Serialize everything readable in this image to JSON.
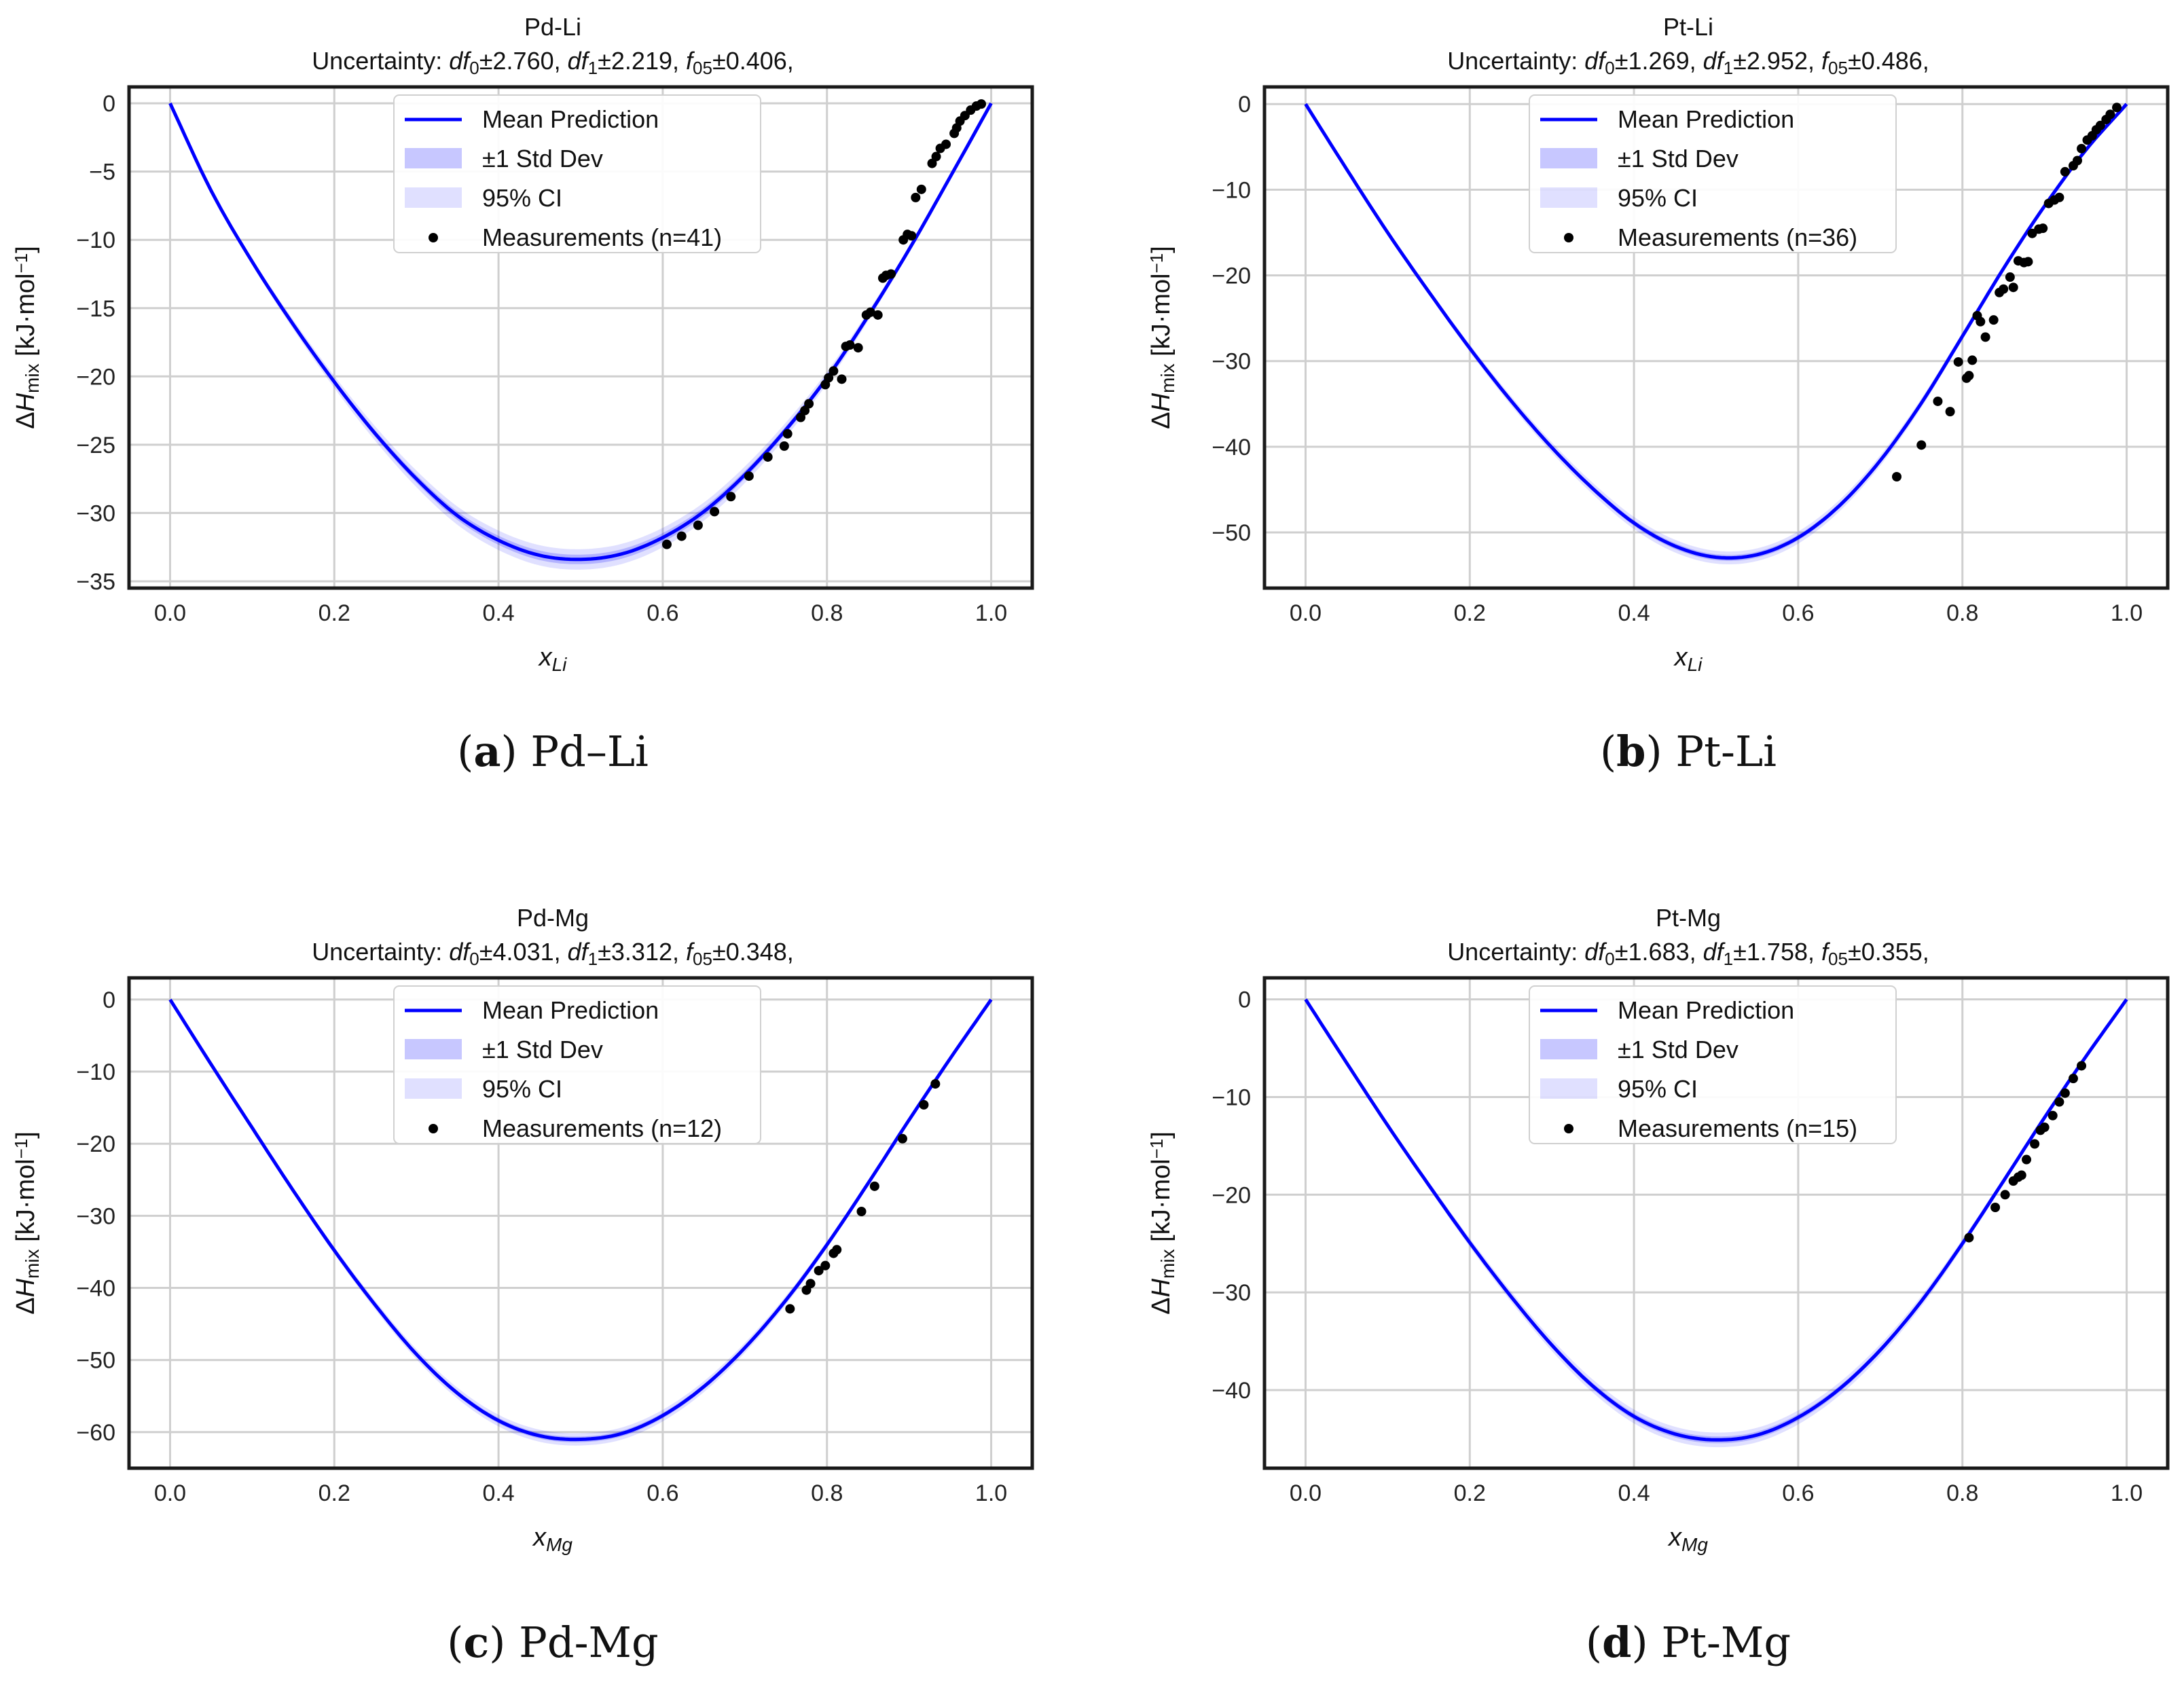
{
  "panels": [
    {
      "caption": {
        "letter": "a",
        "text": "Pd–Li"
      },
      "chart_data": {
        "type": "line",
        "title": "Pd-Li",
        "subtitle": {
          "prefix": "Uncertainty: ",
          "terms": [
            {
              "sym": "df",
              "sub": "0",
              "val": "±2.760,"
            },
            {
              "sym": "df",
              "sub": "1",
              "val": "±2.219,"
            },
            {
              "sym": "f",
              "sub": "05",
              "val": "±0.406,"
            }
          ]
        },
        "xlabel": {
          "sym": "x",
          "sub": "Li"
        },
        "ylabel": {
          "pre": "ΔH",
          "sub": "mix",
          "post": " [kJ·mol",
          "sup": "−1",
          "end": "]"
        },
        "xlim": [
          -0.05,
          1.05
        ],
        "ylim": [
          -35.5,
          1.2
        ],
        "xticks": [
          0.0,
          0.2,
          0.4,
          0.6,
          0.8,
          1.0
        ],
        "xtick_labels": [
          "0.0",
          "0.2",
          "0.4",
          "0.6",
          "0.8",
          "1.0"
        ],
        "yticks": [
          0,
          -5,
          -10,
          -15,
          -20,
          -25,
          -30,
          -35
        ],
        "ytick_labels": [
          "0",
          "−5",
          "−10",
          "−15",
          "−20",
          "−25",
          "−30",
          "−35"
        ],
        "grid": true,
        "legend": [
          "Mean Prediction",
          "±1 Std Dev",
          "95% CI",
          "Measurements (n=41)"
        ],
        "legend_position": "top-center",
        "mean_prediction": {
          "x": [
            0,
            0.05,
            0.1,
            0.15,
            0.2,
            0.25,
            0.3,
            0.35,
            0.4,
            0.45,
            0.5,
            0.55,
            0.6,
            0.65,
            0.7,
            0.75,
            0.8,
            0.85,
            0.9,
            0.95,
            1.0
          ],
          "y": [
            0,
            -6.4,
            -11.6,
            -16.2,
            -20.4,
            -24.2,
            -27.5,
            -30.2,
            -32.0,
            -33.1,
            -33.4,
            -33.0,
            -31.8,
            -29.9,
            -27.2,
            -23.9,
            -20.1,
            -15.6,
            -10.7,
            -5.4,
            0
          ],
          "std": 0.35,
          "ci95": 0.75
        },
        "measurements": {
          "x": [
            0.605,
            0.623,
            0.643,
            0.663,
            0.683,
            0.705,
            0.728,
            0.748,
            0.752,
            0.768,
            0.773,
            0.778,
            0.798,
            0.802,
            0.808,
            0.818,
            0.823,
            0.828,
            0.838,
            0.848,
            0.853,
            0.862,
            0.868,
            0.872,
            0.878,
            0.893,
            0.898,
            0.903,
            0.908,
            0.915,
            0.928,
            0.933,
            0.938,
            0.945,
            0.955,
            0.958,
            0.962,
            0.968,
            0.975,
            0.982,
            0.988
          ],
          "y": [
            -32.3,
            -31.7,
            -30.9,
            -29.9,
            -28.8,
            -27.3,
            -25.9,
            -25.1,
            -24.2,
            -23.0,
            -22.5,
            -22.0,
            -20.6,
            -20.1,
            -19.6,
            -20.2,
            -17.8,
            -17.7,
            -17.9,
            -15.5,
            -15.3,
            -15.5,
            -12.8,
            -12.6,
            -12.5,
            -10.0,
            -9.6,
            -9.7,
            -6.9,
            -6.3,
            -4.4,
            -3.9,
            -3.3,
            -3.0,
            -2.2,
            -1.8,
            -1.3,
            -0.9,
            -0.5,
            -0.2,
            -0.05
          ]
        }
      }
    },
    {
      "caption": {
        "letter": "b",
        "text": "Pt-Li"
      },
      "chart_data": {
        "type": "line",
        "title": "Pt-Li",
        "subtitle": {
          "prefix": "Uncertainty: ",
          "terms": [
            {
              "sym": "df",
              "sub": "0",
              "val": "±1.269,"
            },
            {
              "sym": "df",
              "sub": "1",
              "val": "±2.952,"
            },
            {
              "sym": "f",
              "sub": "05",
              "val": "±0.486,"
            }
          ]
        },
        "xlabel": {
          "sym": "x",
          "sub": "Li"
        },
        "ylabel": {
          "pre": "ΔH",
          "sub": "mix",
          "post": " [kJ·mol",
          "sup": "−1",
          "end": "]"
        },
        "xlim": [
          -0.05,
          1.05
        ],
        "ylim": [
          -56.5,
          2.0
        ],
        "xticks": [
          0.0,
          0.2,
          0.4,
          0.6,
          0.8,
          1.0
        ],
        "xtick_labels": [
          "0.0",
          "0.2",
          "0.4",
          "0.6",
          "0.8",
          "1.0"
        ],
        "yticks": [
          0,
          -10,
          -20,
          -30,
          -40,
          -50
        ],
        "ytick_labels": [
          "0",
          "−10",
          "−20",
          "−30",
          "−40",
          "−50"
        ],
        "grid": true,
        "legend": [
          "Mean Prediction",
          "±1 Std Dev",
          "95% CI",
          "Measurements (n=36)"
        ],
        "legend_position": "top-center",
        "mean_prediction": {
          "x": [
            0,
            0.05,
            0.1,
            0.15,
            0.2,
            0.25,
            0.3,
            0.35,
            0.4,
            0.45,
            0.5,
            0.55,
            0.6,
            0.65,
            0.7,
            0.75,
            0.8,
            0.85,
            0.9,
            0.95,
            1.0
          ],
          "y": [
            0,
            -7.6,
            -15.0,
            -21.9,
            -28.5,
            -34.6,
            -40.1,
            -44.9,
            -48.9,
            -51.6,
            -52.9,
            -52.6,
            -50.6,
            -46.9,
            -41.6,
            -34.9,
            -27.1,
            -19.2,
            -11.9,
            -5.4,
            0
          ],
          "std": 0.35,
          "ci95": 0.75
        },
        "measurements": {
          "x": [
            0.72,
            0.75,
            0.77,
            0.785,
            0.795,
            0.805,
            0.808,
            0.812,
            0.818,
            0.822,
            0.828,
            0.838,
            0.845,
            0.85,
            0.858,
            0.862,
            0.868,
            0.875,
            0.88,
            0.885,
            0.893,
            0.898,
            0.905,
            0.912,
            0.918,
            0.925,
            0.935,
            0.94,
            0.945,
            0.952,
            0.958,
            0.963,
            0.968,
            0.975,
            0.98,
            0.988
          ],
          "y": [
            -43.5,
            -39.8,
            -34.7,
            -35.9,
            -30.1,
            -32.0,
            -31.7,
            -29.9,
            -24.7,
            -25.4,
            -27.2,
            -25.2,
            -22.0,
            -21.6,
            -20.2,
            -21.4,
            -18.3,
            -18.5,
            -18.4,
            -15.1,
            -14.6,
            -14.5,
            -11.6,
            -11.2,
            -10.9,
            -7.9,
            -7.2,
            -6.6,
            -5.2,
            -4.2,
            -3.7,
            -3.0,
            -2.5,
            -1.8,
            -1.2,
            -0.4
          ]
        }
      }
    },
    {
      "caption": {
        "letter": "c",
        "text": "Pd-Mg"
      },
      "chart_data": {
        "type": "line",
        "title": "Pd-Mg",
        "subtitle": {
          "prefix": "Uncertainty: ",
          "terms": [
            {
              "sym": "df",
              "sub": "0",
              "val": "±4.031,"
            },
            {
              "sym": "df",
              "sub": "1",
              "val": "±3.312,"
            },
            {
              "sym": "f",
              "sub": "05",
              "val": "±0.348,"
            }
          ]
        },
        "xlabel": {
          "sym": "x",
          "sub": "Mg"
        },
        "ylabel": {
          "pre": "ΔH",
          "sub": "mix",
          "post": " [kJ·mol",
          "sup": "−1",
          "end": "]"
        },
        "xlim": [
          -0.05,
          1.05
        ],
        "ylim": [
          -65.0,
          3.0
        ],
        "xticks": [
          0.0,
          0.2,
          0.4,
          0.6,
          0.8,
          1.0
        ],
        "xtick_labels": [
          "0.0",
          "0.2",
          "0.4",
          "0.6",
          "0.8",
          "1.0"
        ],
        "yticks": [
          0,
          -10,
          -20,
          -30,
          -40,
          -50,
          -60
        ],
        "ytick_labels": [
          "0",
          "−10",
          "−20",
          "−30",
          "−40",
          "−50",
          "−60"
        ],
        "grid": true,
        "legend": [
          "Mean Prediction",
          "±1 Std Dev",
          "95% CI",
          "Measurements (n=12)"
        ],
        "legend_position": "top-center",
        "mean_prediction": {
          "x": [
            0,
            0.05,
            0.1,
            0.15,
            0.2,
            0.25,
            0.3,
            0.35,
            0.4,
            0.45,
            0.5,
            0.55,
            0.6,
            0.65,
            0.7,
            0.75,
            0.8,
            0.85,
            0.9,
            0.95,
            1.0
          ],
          "y": [
            0,
            -9.0,
            -17.8,
            -26.5,
            -34.8,
            -42.4,
            -49.2,
            -54.6,
            -58.4,
            -60.5,
            -61.0,
            -60.2,
            -57.7,
            -53.7,
            -48.3,
            -41.7,
            -34.0,
            -25.5,
            -16.7,
            -8.2,
            0
          ],
          "std": 0.4,
          "ci95": 0.85
        },
        "measurements": {
          "x": [
            0.755,
            0.775,
            0.78,
            0.79,
            0.798,
            0.808,
            0.812,
            0.842,
            0.858,
            0.892,
            0.918,
            0.932
          ],
          "y": [
            -42.9,
            -40.3,
            -39.4,
            -37.6,
            -36.9,
            -35.2,
            -34.7,
            -29.4,
            -25.9,
            -19.3,
            -14.6,
            -11.7
          ]
        }
      }
    },
    {
      "caption": {
        "letter": "d",
        "text": "Pt-Mg"
      },
      "chart_data": {
        "type": "line",
        "title": "Pt-Mg",
        "subtitle": {
          "prefix": "Uncertainty: ",
          "terms": [
            {
              "sym": "df",
              "sub": "0",
              "val": "±1.683,"
            },
            {
              "sym": "df",
              "sub": "1",
              "val": "±1.758,"
            },
            {
              "sym": "f",
              "sub": "05",
              "val": "±0.355,"
            }
          ]
        },
        "xlabel": {
          "sym": "x",
          "sub": "Mg"
        },
        "ylabel": {
          "pre": "ΔH",
          "sub": "mix",
          "post": " [kJ·mol",
          "sup": "−1",
          "end": "]"
        },
        "xlim": [
          -0.05,
          1.05
        ],
        "ylim": [
          -48.0,
          2.2
        ],
        "xticks": [
          0.0,
          0.2,
          0.4,
          0.6,
          0.8,
          1.0
        ],
        "xtick_labels": [
          "0.0",
          "0.2",
          "0.4",
          "0.6",
          "0.8",
          "1.0"
        ],
        "yticks": [
          0,
          -10,
          -20,
          -30,
          -40
        ],
        "ytick_labels": [
          "0",
          "−10",
          "−20",
          "−30",
          "−40"
        ],
        "grid": true,
        "legend": [
          "Mean Prediction",
          "±1 Std Dev",
          "95% CI",
          "Measurements (n=15)"
        ],
        "legend_position": "top-center",
        "mean_prediction": {
          "x": [
            0,
            0.05,
            0.1,
            0.15,
            0.2,
            0.25,
            0.3,
            0.35,
            0.4,
            0.45,
            0.5,
            0.55,
            0.6,
            0.65,
            0.7,
            0.75,
            0.8,
            0.85,
            0.9,
            0.95,
            1.0
          ],
          "y": [
            0,
            -6.5,
            -12.9,
            -19.0,
            -24.9,
            -30.4,
            -35.4,
            -39.6,
            -42.7,
            -44.5,
            -45.1,
            -44.6,
            -42.8,
            -39.9,
            -35.9,
            -30.9,
            -25.0,
            -18.6,
            -12.1,
            -5.9,
            0
          ],
          "std": 0.35,
          "ci95": 0.75
        },
        "measurements": {
          "x": [
            0.808,
            0.84,
            0.852,
            0.862,
            0.868,
            0.872,
            0.878,
            0.888,
            0.895,
            0.9,
            0.91,
            0.918,
            0.925,
            0.935,
            0.945
          ],
          "y": [
            -24.4,
            -21.3,
            -20.0,
            -18.6,
            -18.2,
            -18.0,
            -16.4,
            -14.8,
            -13.4,
            -13.1,
            -11.9,
            -10.5,
            -9.6,
            -8.1,
            -6.8
          ]
        }
      }
    }
  ]
}
